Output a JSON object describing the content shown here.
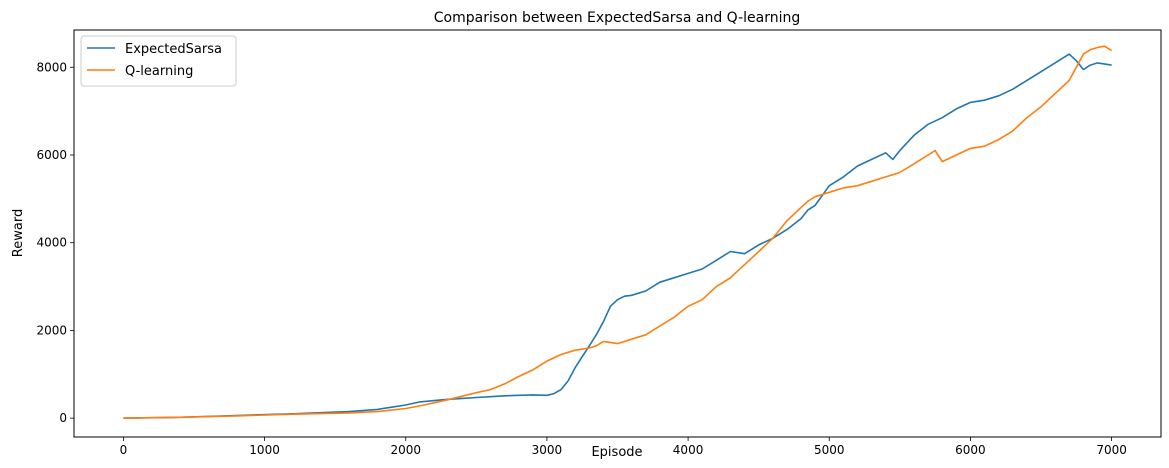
{
  "chart_data": {
    "type": "line",
    "title": "Comparison between ExpectedSarsa and Q-learning",
    "xlabel": "Episode",
    "ylabel": "Reward",
    "xlim": [
      -350,
      7350
    ],
    "ylim": [
      -430,
      8850
    ],
    "xticks": [
      0,
      1000,
      2000,
      3000,
      4000,
      5000,
      6000,
      7000
    ],
    "yticks": [
      0,
      2000,
      4000,
      6000,
      8000
    ],
    "legend": "top-left",
    "grid": false,
    "series": [
      {
        "name": "ExpectedSarsa",
        "color": "#1f77b4",
        "x": [
          0,
          400,
          800,
          1200,
          1600,
          1800,
          1900,
          2000,
          2100,
          2200,
          2300,
          2400,
          2500,
          2600,
          2700,
          2800,
          2900,
          3000,
          3050,
          3100,
          3150,
          3200,
          3250,
          3300,
          3350,
          3400,
          3450,
          3500,
          3550,
          3600,
          3700,
          3800,
          3900,
          4000,
          4100,
          4200,
          4300,
          4400,
          4500,
          4600,
          4700,
          4800,
          4850,
          4900,
          5000,
          5100,
          5200,
          5300,
          5400,
          5450,
          5500,
          5600,
          5700,
          5800,
          5900,
          6000,
          6100,
          6200,
          6300,
          6400,
          6500,
          6600,
          6700,
          6750,
          6800,
          6850,
          6900,
          7000
        ],
        "y": [
          0,
          20,
          60,
          100,
          150,
          200,
          250,
          300,
          370,
          400,
          430,
          450,
          470,
          490,
          510,
          520,
          530,
          520,
          560,
          650,
          850,
          1150,
          1400,
          1650,
          1900,
          2200,
          2550,
          2700,
          2780,
          2800,
          2900,
          3100,
          3200,
          3300,
          3400,
          3600,
          3800,
          3750,
          3950,
          4100,
          4300,
          4550,
          4750,
          4850,
          5300,
          5500,
          5750,
          5900,
          6050,
          5900,
          6100,
          6450,
          6700,
          6850,
          7050,
          7200,
          7250,
          7350,
          7500,
          7700,
          7900,
          8100,
          8300,
          8150,
          7950,
          8050,
          8100,
          8050
        ]
      },
      {
        "name": "Q-learning",
        "color": "#ff7f0e",
        "x": [
          0,
          400,
          800,
          1200,
          1600,
          1800,
          2000,
          2100,
          2200,
          2300,
          2400,
          2500,
          2600,
          2700,
          2800,
          2900,
          3000,
          3100,
          3200,
          3300,
          3350,
          3400,
          3500,
          3600,
          3700,
          3800,
          3900,
          4000,
          4100,
          4200,
          4300,
          4400,
          4500,
          4600,
          4700,
          4800,
          4850,
          4900,
          5000,
          5100,
          5200,
          5300,
          5400,
          5500,
          5600,
          5700,
          5750,
          5800,
          5900,
          6000,
          6100,
          6200,
          6300,
          6400,
          6500,
          6600,
          6700,
          6750,
          6800,
          6850,
          6900,
          6950,
          7000
        ],
        "y": [
          0,
          20,
          50,
          90,
          120,
          150,
          220,
          280,
          350,
          420,
          500,
          580,
          650,
          780,
          950,
          1100,
          1300,
          1450,
          1550,
          1600,
          1650,
          1750,
          1700,
          1800,
          1900,
          2100,
          2300,
          2550,
          2700,
          3000,
          3200,
          3500,
          3800,
          4100,
          4500,
          4800,
          4950,
          5050,
          5150,
          5250,
          5300,
          5400,
          5500,
          5600,
          5800,
          6000,
          6100,
          5850,
          6000,
          6150,
          6200,
          6350,
          6550,
          6850,
          7100,
          7400,
          7700,
          8000,
          8300,
          8400,
          8450,
          8480,
          8380
        ]
      }
    ]
  }
}
